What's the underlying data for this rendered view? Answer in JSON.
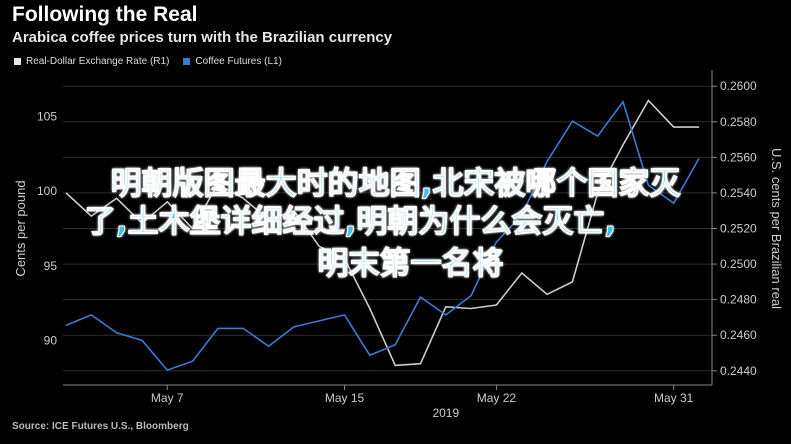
{
  "chart_data": {
    "type": "line",
    "title": "Following the Real",
    "subtitle": "Arabica coffee prices turn with the Brazilian currency",
    "ylabel_left": "Cents per pound",
    "ylabel_right": "U.S. cents per Brazilian real",
    "xlabel": "2019",
    "x_ticks": [
      "May 7",
      "May 15",
      "May 22",
      "May 31"
    ],
    "left_ticks": [
      90,
      95,
      100,
      105
    ],
    "left_ylim": [
      87,
      108
    ],
    "right_ticks": [
      "0.2440",
      "0.2460",
      "0.2480",
      "0.2500",
      "0.2520",
      "0.2540",
      "0.2560",
      "0.2580",
      "0.2600"
    ],
    "right_ylim": [
      0.2432,
      0.2608
    ],
    "legend_position": "top-left",
    "series": [
      {
        "name": "Real-Dollar Exchange Rate (R1)",
        "axis": "right",
        "color": "#cccccc",
        "x": [
          0,
          1,
          2,
          3,
          4,
          5,
          6,
          7,
          8,
          9,
          10,
          11,
          12,
          13,
          14,
          15,
          16,
          17,
          18,
          19,
          20,
          21,
          22,
          23,
          24,
          25
        ],
        "y": [
          0.254,
          0.2527,
          0.2537,
          0.2523,
          0.2535,
          0.252,
          0.2545,
          0.2537,
          0.2525,
          0.253,
          0.251,
          0.2503,
          0.2475,
          0.2443,
          0.2444,
          0.2476,
          0.2475,
          0.2477,
          0.2495,
          0.2483,
          0.249,
          0.254,
          0.2567,
          0.2592,
          0.2577,
          0.2577
        ]
      },
      {
        "name": "Coffee Futures (L1)",
        "axis": "left",
        "color": "#3a7bd5",
        "x": [
          0,
          1,
          2,
          3,
          4,
          5,
          6,
          7,
          8,
          9,
          10,
          11,
          12,
          13,
          14,
          15,
          16,
          17,
          18,
          19,
          20,
          21,
          22,
          23,
          24,
          25
        ],
        "y": [
          91.0,
          91.7,
          90.5,
          90.0,
          88.0,
          88.6,
          90.8,
          90.8,
          89.6,
          90.9,
          91.3,
          91.7,
          89.0,
          89.7,
          92.9,
          91.7,
          93.0,
          96.6,
          98.4,
          102.0,
          104.7,
          103.7,
          106.0,
          100.4,
          99.2,
          102.2
        ]
      }
    ]
  },
  "source": "Source: ICE Futures U.S., Bloomberg",
  "overlay_lines": [
    "明朝版图最大时的地图,北宋被哪个国家灭",
    "了,土木堡详细经过,明朝为什么会灭亡,",
    "明末第一名将"
  ]
}
